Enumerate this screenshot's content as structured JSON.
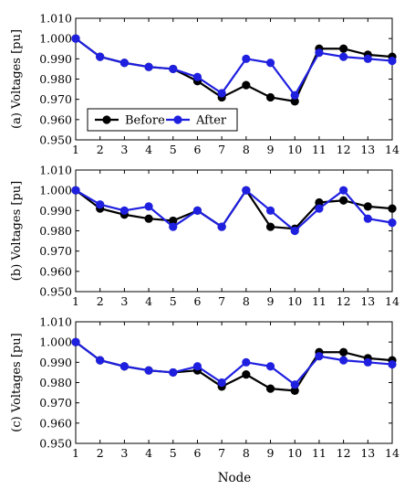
{
  "figure": {
    "xlabel": "Node",
    "legend": {
      "placement": "lower-left of panel (a)",
      "entries": [
        "Before",
        "After"
      ]
    },
    "colors": {
      "before": "#000000",
      "after": "#1f1fe0",
      "frame": "#000000"
    }
  },
  "chart_data": [
    {
      "type": "line",
      "ylabel": "(a) Voltages [pu]",
      "x": [
        1,
        2,
        3,
        4,
        5,
        6,
        7,
        8,
        9,
        10,
        11,
        12,
        13,
        14
      ],
      "ylim": [
        0.95,
        1.01
      ],
      "yticks": [
        "0.950",
        "0.960",
        "0.970",
        "0.980",
        "0.990",
        "1.000",
        "1.010"
      ],
      "xticks": [
        "1",
        "2",
        "3",
        "4",
        "5",
        "6",
        "7",
        "8",
        "9",
        "10",
        "11",
        "12",
        "13",
        "14"
      ],
      "legend": [
        "Before",
        "After"
      ],
      "series": [
        {
          "name": "Before",
          "color": "#000000",
          "values": [
            1.0,
            0.991,
            0.988,
            0.986,
            0.985,
            0.979,
            0.971,
            0.977,
            0.971,
            0.969,
            0.995,
            0.995,
            0.992,
            0.991
          ]
        },
        {
          "name": "After",
          "color": "#1f1fe0",
          "values": [
            1.0,
            0.991,
            0.988,
            0.986,
            0.985,
            0.981,
            0.973,
            0.99,
            0.988,
            0.972,
            0.993,
            0.991,
            0.99,
            0.989
          ]
        }
      ]
    },
    {
      "type": "line",
      "ylabel": "(b) Voltages [pu]",
      "x": [
        1,
        2,
        3,
        4,
        5,
        6,
        7,
        8,
        9,
        10,
        11,
        12,
        13,
        14
      ],
      "ylim": [
        0.95,
        1.01
      ],
      "yticks": [
        "0.950",
        "0.960",
        "0.970",
        "0.980",
        "0.990",
        "1.000",
        "1.010"
      ],
      "xticks": [
        "1",
        "2",
        "3",
        "4",
        "5",
        "6",
        "7",
        "8",
        "9",
        "10",
        "11",
        "12",
        "13",
        "14"
      ],
      "series": [
        {
          "name": "Before",
          "color": "#000000",
          "values": [
            1.0,
            0.991,
            0.988,
            0.986,
            0.985,
            0.99,
            0.982,
            1.0,
            0.982,
            0.981,
            0.994,
            0.995,
            0.992,
            0.991
          ]
        },
        {
          "name": "After",
          "color": "#1f1fe0",
          "values": [
            1.0,
            0.993,
            0.99,
            0.992,
            0.982,
            0.99,
            0.982,
            1.0,
            0.99,
            0.98,
            0.991,
            1.0,
            0.986,
            0.984
          ]
        }
      ]
    },
    {
      "type": "line",
      "ylabel": "(c) Voltages [pu]",
      "x": [
        1,
        2,
        3,
        4,
        5,
        6,
        7,
        8,
        9,
        10,
        11,
        12,
        13,
        14
      ],
      "ylim": [
        0.95,
        1.01
      ],
      "yticks": [
        "0.950",
        "0.960",
        "0.970",
        "0.980",
        "0.990",
        "1.000",
        "1.010"
      ],
      "xticks": [
        "1",
        "2",
        "3",
        "4",
        "5",
        "6",
        "7",
        "8",
        "9",
        "10",
        "11",
        "12",
        "13",
        "14"
      ],
      "series": [
        {
          "name": "Before",
          "color": "#000000",
          "values": [
            1.0,
            0.991,
            0.988,
            0.986,
            0.985,
            0.986,
            0.978,
            0.984,
            0.977,
            0.976,
            0.995,
            0.995,
            0.992,
            0.991
          ]
        },
        {
          "name": "After",
          "color": "#1f1fe0",
          "values": [
            1.0,
            0.991,
            0.988,
            0.986,
            0.985,
            0.988,
            0.98,
            0.99,
            0.988,
            0.979,
            0.993,
            0.991,
            0.99,
            0.989
          ]
        }
      ]
    }
  ]
}
